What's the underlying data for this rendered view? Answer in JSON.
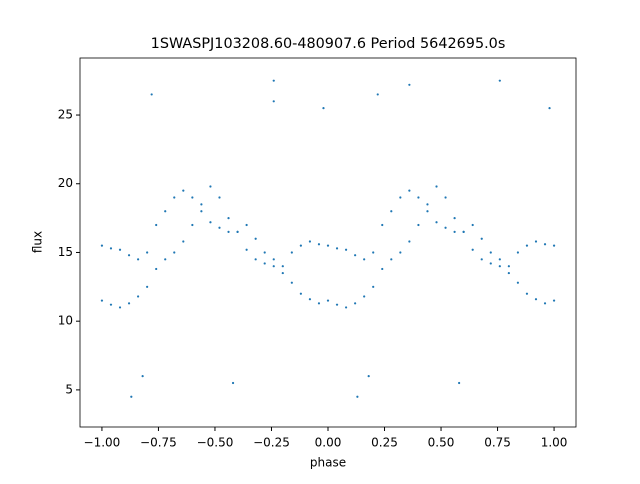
{
  "chart_data": {
    "type": "scatter",
    "title": "1SWASPJ103208.60-480907.6 Period 5642695.0s",
    "xlabel": "phase",
    "ylabel": "flux",
    "color": "#1f77b4",
    "x": [
      -1,
      -0.96,
      -0.92,
      -0.88,
      -0.84,
      -0.8,
      -0.76,
      -0.72,
      -0.68,
      -0.64,
      -0.6,
      -0.56,
      -0.52,
      -0.48,
      -0.44,
      -0.4,
      -0.36,
      -0.32,
      -0.28,
      -0.24,
      -0.2,
      -0.16,
      -0.12,
      -0.08,
      -0.04,
      0,
      0.04,
      0.08,
      0.12,
      0.16,
      0.2,
      0.24,
      0.28,
      0.32,
      0.36,
      0.4,
      0.44,
      0.48,
      0.52,
      0.56,
      0.6,
      0.64,
      0.68,
      0.72,
      0.76,
      0.8,
      0.84,
      0.88,
      0.92,
      0.96,
      1,
      -1,
      -0.96,
      -0.92,
      -0.88,
      -0.84,
      -0.8,
      -0.76,
      -0.72,
      -0.68,
      -0.64,
      -0.6,
      -0.56,
      -0.52,
      -0.48,
      -0.44,
      -0.4,
      -0.36,
      -0.32,
      -0.28,
      -0.24,
      -0.2,
      -0.16,
      -0.12,
      -0.08,
      -0.04,
      0,
      0.04,
      0.08,
      0.12,
      0.16,
      0.2,
      0.24,
      0.28,
      0.32,
      0.36,
      0.4,
      0.44,
      0.48,
      0.52,
      0.56,
      0.6,
      0.64,
      0.68,
      0.72,
      0.76,
      0.8,
      0.84,
      0.88,
      0.92,
      0.96,
      1,
      -0.24,
      -0.24,
      -0.02,
      0.76,
      0.98,
      -0.82,
      0.18,
      -0.42,
      0.58,
      -0.87,
      0.13,
      -0.78,
      0.22,
      0.36
    ],
    "y": [
      11.5,
      11.2,
      11.0,
      11.3,
      11.8,
      12.5,
      13.8,
      14.5,
      15.0,
      15.8,
      17.0,
      18.5,
      19.8,
      19.0,
      17.5,
      16.5,
      15.2,
      14.5,
      14.2,
      14.0,
      13.5,
      12.8,
      12.0,
      11.6,
      11.3,
      11.5,
      11.2,
      11.0,
      11.3,
      11.8,
      12.5,
      13.8,
      14.5,
      15.0,
      15.8,
      17.0,
      18.5,
      19.8,
      19.0,
      17.5,
      16.5,
      15.2,
      14.5,
      14.2,
      14.0,
      13.5,
      12.8,
      12.0,
      11.6,
      11.3,
      11.5,
      15.5,
      15.3,
      15.2,
      14.8,
      14.5,
      15.0,
      17.0,
      18.0,
      19.0,
      19.5,
      19.0,
      18.0,
      17.2,
      16.8,
      16.5,
      16.5,
      17.0,
      16.0,
      15.0,
      14.5,
      14.0,
      15.0,
      15.5,
      15.8,
      15.6,
      15.5,
      15.3,
      15.2,
      14.8,
      14.5,
      15.0,
      17.0,
      18.0,
      19.0,
      19.5,
      19.0,
      18.0,
      17.2,
      16.8,
      16.5,
      16.5,
      17.0,
      16.0,
      15.0,
      14.5,
      14.0,
      15.0,
      15.5,
      15.8,
      15.6,
      15.5,
      27.5,
      26,
      25.5,
      27.5,
      25.5,
      6,
      6,
      5.5,
      5.5,
      4.5,
      4.5,
      26.5,
      26.5,
      27.2
    ],
    "xlim": [
      -1.097,
      1.097
    ],
    "ylim": [
      2.3,
      29.15
    ],
    "xticks": [
      {
        "value": -1,
        "label": "−1.00"
      },
      {
        "value": -0.75,
        "label": "−0.75"
      },
      {
        "value": -0.5,
        "label": "−0.50"
      },
      {
        "value": -0.25,
        "label": "−0.25"
      },
      {
        "value": 0,
        "label": "0.00"
      },
      {
        "value": 0.25,
        "label": "0.25"
      },
      {
        "value": 0.5,
        "label": "0.50"
      },
      {
        "value": 0.75,
        "label": "0.75"
      },
      {
        "value": 1,
        "label": "1.00"
      }
    ],
    "yticks": [
      5,
      10,
      15,
      20,
      25
    ]
  }
}
